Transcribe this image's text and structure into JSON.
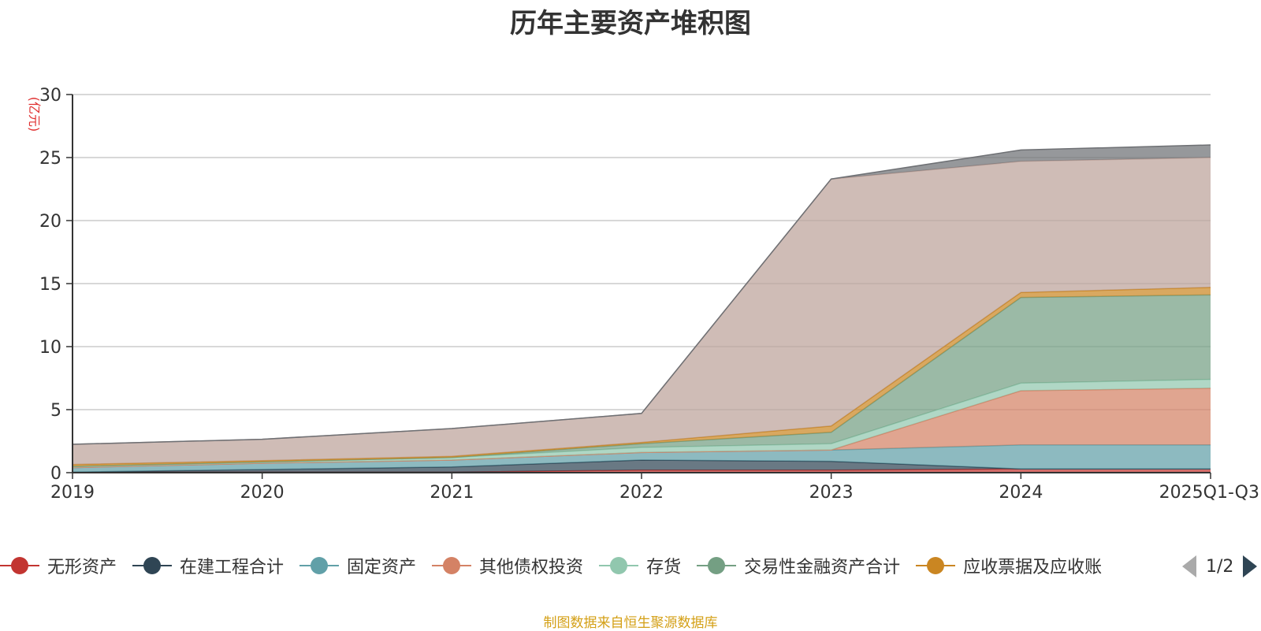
{
  "title": "历年主要资产堆积图",
  "source_note": "制图数据来自恒生聚源数据库",
  "pager": {
    "text": "1/2"
  },
  "chart_data": {
    "type": "area",
    "stacked": true,
    "title": "历年主要资产堆积图",
    "ylabel": "(亿元)",
    "ylim": [
      0,
      30
    ],
    "yticks": [
      0,
      5,
      10,
      15,
      20,
      25,
      30
    ],
    "grid": true,
    "legend_position": "bottom",
    "categories": [
      "2019",
      "2020",
      "2021",
      "2022",
      "2023",
      "2024",
      "2025Q1-Q3"
    ],
    "series": [
      {
        "name": "无形资产",
        "color": "#c23531",
        "values": [
          0.05,
          0.05,
          0.05,
          0.2,
          0.2,
          0.3,
          0.3
        ]
      },
      {
        "name": "在建工程合计",
        "color": "#2f4554",
        "values": [
          0.0,
          0.2,
          0.4,
          0.8,
          0.7,
          0.0,
          0.0
        ]
      },
      {
        "name": "固定资产",
        "color": "#61a0a8",
        "values": [
          0.35,
          0.5,
          0.55,
          0.6,
          0.9,
          1.9,
          1.9
        ]
      },
      {
        "name": "其他债权投资",
        "color": "#d48265",
        "values": [
          0.0,
          0.0,
          0.0,
          0.0,
          0.0,
          4.3,
          4.5
        ]
      },
      {
        "name": "存货",
        "color": "#91c7ae",
        "values": [
          0.1,
          0.1,
          0.2,
          0.4,
          0.5,
          0.6,
          0.7
        ]
      },
      {
        "name": "交易性金融资产合计",
        "color": "#749f83",
        "values": [
          0.0,
          0.0,
          0.0,
          0.3,
          0.9,
          6.8,
          6.7
        ]
      },
      {
        "name": "应收票据及应收账",
        "color": "#ca8622",
        "values": [
          0.15,
          0.1,
          0.1,
          0.1,
          0.5,
          0.4,
          0.6
        ]
      },
      {
        "name": "",
        "color": "#bda29a",
        "values": [
          1.6,
          1.7,
          2.2,
          2.3,
          19.6,
          10.4,
          10.3
        ]
      },
      {
        "name": "",
        "color": "#6e7074",
        "values": [
          0.0,
          0.0,
          0.0,
          0.0,
          0.0,
          0.9,
          1.0
        ]
      }
    ]
  }
}
